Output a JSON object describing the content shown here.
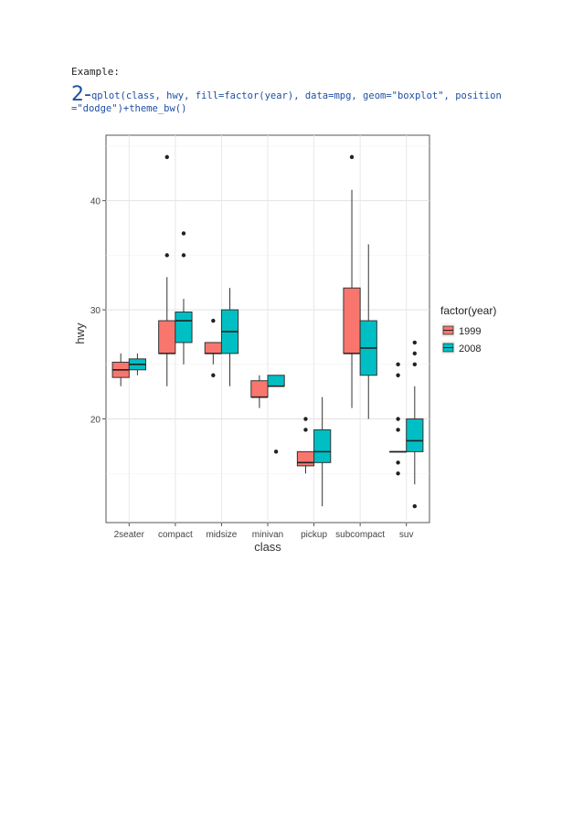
{
  "document": {
    "example_label": "Example:",
    "code_number": "2-",
    "code_text": "qplot(class, hwy, fill=factor(year), data=mpg, geom=\"boxplot\", position",
    "code_text_2": "=\"dodge\")+theme_bw()"
  },
  "chart_data": {
    "type": "boxplot",
    "xlabel": "class",
    "ylabel": "hwy",
    "ylim": [
      10.5,
      46
    ],
    "yticks": [
      20,
      30,
      40
    ],
    "grid": true,
    "legend_position": "right",
    "legend_title": "factor(year)",
    "categories": [
      "2seater",
      "compact",
      "midsize",
      "minivan",
      "pickup",
      "subcompact",
      "suv"
    ],
    "colors": {
      "1999": "#f8766d",
      "2008": "#00bfc4"
    },
    "series": [
      {
        "name": "1999",
        "boxes": [
          {
            "cat": "2seater",
            "min": 23,
            "q1": 23.8,
            "median": 24.5,
            "q3": 25.2,
            "max": 26,
            "outliers": []
          },
          {
            "cat": "compact",
            "min": 23,
            "q1": 26,
            "median": 26,
            "q3": 29,
            "max": 33,
            "outliers": [
              35,
              44
            ]
          },
          {
            "cat": "midsize",
            "min": 25,
            "q1": 26,
            "median": 26,
            "q3": 27,
            "max": 27,
            "outliers": [
              24,
              29
            ]
          },
          {
            "cat": "minivan",
            "min": 21,
            "q1": 22,
            "median": 22,
            "q3": 23.5,
            "max": 24,
            "outliers": []
          },
          {
            "cat": "pickup",
            "min": 15,
            "q1": 15.7,
            "median": 16,
            "q3": 17,
            "max": 17,
            "outliers": [
              19,
              20
            ]
          },
          {
            "cat": "subcompact",
            "min": 21,
            "q1": 26,
            "median": 26,
            "q3": 32,
            "max": 41,
            "outliers": [
              44
            ]
          },
          {
            "cat": "suv",
            "min": 17,
            "q1": 17,
            "median": 17,
            "q3": 17,
            "max": 17,
            "outliers": [
              15,
              16,
              19,
              20,
              24,
              25
            ]
          }
        ]
      },
      {
        "name": "2008",
        "boxes": [
          {
            "cat": "2seater",
            "min": 24,
            "q1": 24.5,
            "median": 25,
            "q3": 25.5,
            "max": 26,
            "outliers": []
          },
          {
            "cat": "compact",
            "min": 25,
            "q1": 27,
            "median": 29,
            "q3": 29.8,
            "max": 31,
            "outliers": [
              35,
              37
            ]
          },
          {
            "cat": "midsize",
            "min": 23,
            "q1": 26,
            "median": 28,
            "q3": 30,
            "max": 32,
            "outliers": []
          },
          {
            "cat": "minivan",
            "min": 23,
            "q1": 23,
            "median": 23,
            "q3": 24,
            "max": 24,
            "outliers": [
              17
            ]
          },
          {
            "cat": "pickup",
            "min": 12,
            "q1": 16,
            "median": 17,
            "q3": 19,
            "max": 22,
            "outliers": []
          },
          {
            "cat": "subcompact",
            "min": 20,
            "q1": 24,
            "median": 26.5,
            "q3": 29,
            "max": 36,
            "outliers": []
          },
          {
            "cat": "suv",
            "min": 14,
            "q1": 17,
            "median": 18,
            "q3": 20,
            "max": 23,
            "outliers": [
              12,
              25,
              26,
              27
            ]
          }
        ]
      }
    ]
  }
}
